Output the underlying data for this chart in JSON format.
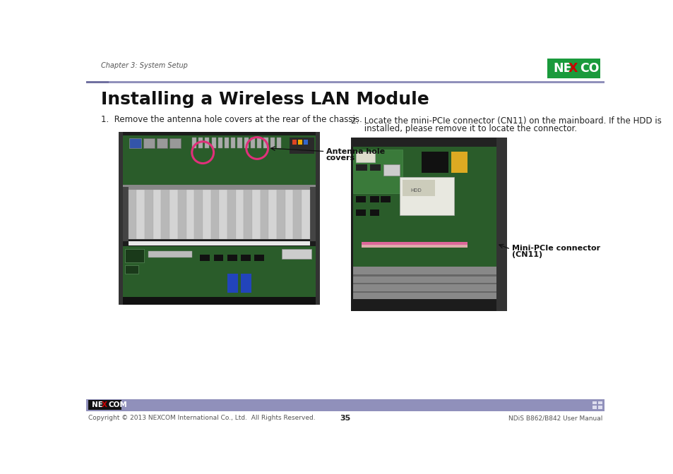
{
  "title": "Installing a Wireless LAN Module",
  "header_text": "Chapter 3: System Setup",
  "step1_text": "1.  Remove the antenna hole covers at the rear of the chassis.",
  "step2_line1": "2.  Locate the mini-PCIe connector (CN11) on the mainboard. If the HDD is",
  "step2_line2": "     installed, please remove it to locate the connector.",
  "label1_line1": "Antenna hole",
  "label1_line2": "covers",
  "label2_line1": "Mini-PCIe connector",
  "label2_line2": "(CN11)",
  "footer_left": "Copyright © 2013 NEXCOM International Co., Ltd.  All Rights Reserved.",
  "footer_center": "35",
  "footer_right": "NDiS B862/B842 User Manual",
  "nexcom_green": "#1a9a3c",
  "nexcom_red": "#cc0000",
  "header_line_color": "#9090bb",
  "header_rect_color": "#7070a0",
  "footer_bar_color": "#9090bb",
  "bg_color": "#ffffff",
  "title_fontsize": 18,
  "header_fontsize": 7,
  "step_fontsize": 8.5,
  "label_fontsize": 8,
  "footer_fontsize": 6.5,
  "annotation_color": "#e0307a",
  "text_color": "#222222"
}
